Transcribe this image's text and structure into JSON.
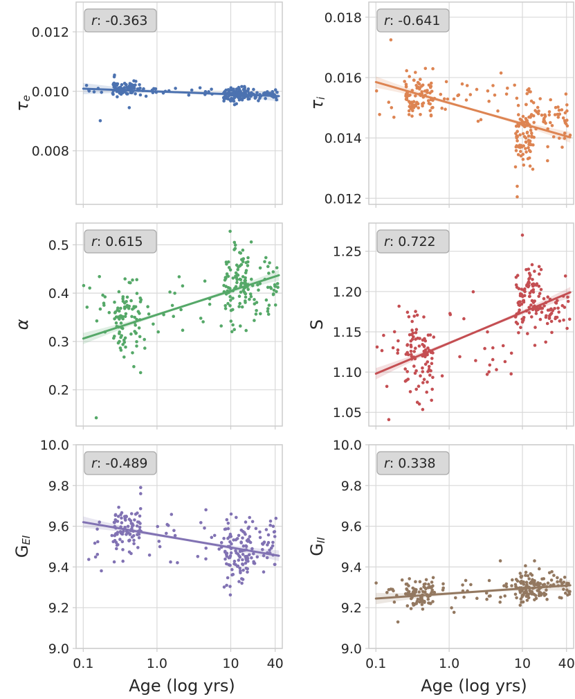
{
  "chart_data": [
    {
      "type": "scatter",
      "id": "tau_e",
      "ylabel": "τ",
      "ylabel_sub": "e",
      "annotation": {
        "label": "r",
        "value": "-0.363"
      },
      "color": "#4C72B0",
      "x_scale": "log",
      "xlim": [
        0.08,
        50
      ],
      "ylim": [
        0.0062,
        0.013
      ],
      "y_ticks": [
        "0.008",
        "0.010",
        "0.012"
      ],
      "fit": {
        "x": [
          0.1,
          45
        ],
        "y": [
          0.01009,
          0.00984
        ]
      },
      "points": {
        "n": 260,
        "seed": 11,
        "clusters": [
          {
            "x": [
              0.25,
              0.6
            ],
            "y": 0.01012,
            "sd": 0.00012,
            "frac": 0.32
          },
          {
            "x": [
              8,
              18
            ],
            "y": 0.00988,
            "sd": 0.00013,
            "frac": 0.42
          },
          {
            "x": [
              18,
              45
            ],
            "y": 0.0099,
            "sd": 0.0001,
            "frac": 0.14
          },
          {
            "x": [
              0.1,
              8
            ],
            "y": 0.01,
            "sd": 0.0001,
            "frac": 0.12
          }
        ],
        "outliers": [
          [
            0.17,
            0.00901
          ],
          [
            0.42,
            0.00945
          ],
          [
            0.12,
            0.01001
          ]
        ]
      }
    },
    {
      "type": "scatter",
      "id": "tau_i",
      "ylabel": "τ",
      "ylabel_sub": "i",
      "annotation": {
        "label": "r",
        "value": "-0.641"
      },
      "color": "#DD8452",
      "x_scale": "log",
      "xlim": [
        0.08,
        50
      ],
      "ylim": [
        0.0118,
        0.0185
      ],
      "y_ticks": [
        "0.012",
        "0.014",
        "0.016",
        "0.018"
      ],
      "fit": {
        "x": [
          0.1,
          45
        ],
        "y": [
          0.01585,
          0.01402
        ]
      },
      "points": {
        "n": 260,
        "seed": 23,
        "clusters": [
          {
            "x": [
              0.25,
              0.6
            ],
            "y": 0.0155,
            "sd": 0.00035,
            "frac": 0.3
          },
          {
            "x": [
              8,
              14
            ],
            "y": 0.0142,
            "sd": 0.00055,
            "frac": 0.36
          },
          {
            "x": [
              14,
              45
            ],
            "y": 0.0147,
            "sd": 0.0004,
            "frac": 0.2
          },
          {
            "x": [
              0.1,
              8
            ],
            "y": 0.0152,
            "sd": 0.0004,
            "frac": 0.14
          }
        ],
        "outliers": [
          [
            0.16,
            0.01725
          ],
          [
            8.5,
            0.01205
          ],
          [
            8.5,
            0.0124
          ]
        ]
      }
    },
    {
      "type": "scatter",
      "id": "alpha",
      "ylabel": "α",
      "annotation": {
        "label": "r",
        "value": "0.615"
      },
      "color": "#55A868",
      "x_scale": "log",
      "xlim": [
        0.08,
        50
      ],
      "ylim": [
        0.125,
        0.545
      ],
      "y_ticks": [
        "0.2",
        "0.3",
        "0.4",
        "0.5"
      ],
      "fit": {
        "x": [
          0.1,
          45
        ],
        "y": [
          0.306,
          0.437
        ]
      },
      "points": {
        "n": 260,
        "seed": 37,
        "clusters": [
          {
            "x": [
              0.25,
              0.6
            ],
            "y": 0.33,
            "sd": 0.04,
            "frac": 0.3
          },
          {
            "x": [
              8,
              18
            ],
            "y": 0.42,
            "sd": 0.04,
            "frac": 0.38
          },
          {
            "x": [
              18,
              45
            ],
            "y": 0.4,
            "sd": 0.035,
            "frac": 0.16
          },
          {
            "x": [
              0.1,
              8
            ],
            "y": 0.37,
            "sd": 0.04,
            "frac": 0.16
          }
        ],
        "outliers": [
          [
            0.15,
            0.142
          ],
          [
            9.8,
            0.528
          ]
        ]
      }
    },
    {
      "type": "scatter",
      "id": "S",
      "ylabel": "S",
      "annotation": {
        "label": "r",
        "value": "0.722"
      },
      "color": "#C44E52",
      "x_scale": "log",
      "xlim": [
        0.08,
        50
      ],
      "ylim": [
        1.033,
        1.285
      ],
      "y_ticks": [
        "1.05",
        "1.10",
        "1.15",
        "1.20",
        "1.25"
      ],
      "fit": {
        "x": [
          0.1,
          45
        ],
        "y": [
          1.098,
          1.199
        ]
      },
      "points": {
        "n": 260,
        "seed": 53,
        "clusters": [
          {
            "x": [
              0.25,
              0.6
            ],
            "y": 1.12,
            "sd": 0.025,
            "frac": 0.3
          },
          {
            "x": [
              8,
              18
            ],
            "y": 1.19,
            "sd": 0.02,
            "frac": 0.38
          },
          {
            "x": [
              18,
              45
            ],
            "y": 1.17,
            "sd": 0.018,
            "frac": 0.16
          },
          {
            "x": [
              0.1,
              8
            ],
            "y": 1.14,
            "sd": 0.025,
            "frac": 0.16
          }
        ],
        "outliers": [
          [
            0.15,
            1.041
          ],
          [
            10,
            1.27
          ]
        ]
      }
    },
    {
      "type": "scatter",
      "id": "G_EI",
      "ylabel": "G",
      "ylabel_sub": "EI",
      "annotation": {
        "label": "r",
        "value": "-0.489"
      },
      "color": "#8172B3",
      "x_scale": "log",
      "xlim": [
        0.08,
        50
      ],
      "ylim": [
        9.0,
        10.0
      ],
      "y_ticks": [
        "9.0",
        "9.2",
        "9.4",
        "9.6",
        "9.8",
        "10.0"
      ],
      "fit": {
        "x": [
          0.1,
          45
        ],
        "y": [
          9.62,
          9.455
        ]
      },
      "points": {
        "n": 260,
        "seed": 71,
        "clusters": [
          {
            "x": [
              0.25,
              0.6
            ],
            "y": 9.58,
            "sd": 0.06,
            "frac": 0.3
          },
          {
            "x": [
              8,
              18
            ],
            "y": 9.48,
            "sd": 0.08,
            "frac": 0.38
          },
          {
            "x": [
              18,
              45
            ],
            "y": 9.52,
            "sd": 0.07,
            "frac": 0.16
          },
          {
            "x": [
              0.1,
              8
            ],
            "y": 9.55,
            "sd": 0.07,
            "frac": 0.16
          }
        ],
        "outliers": [
          [
            0.6,
            9.79
          ],
          [
            0.6,
            9.76
          ],
          [
            8.8,
            9.31
          ]
        ]
      }
    },
    {
      "type": "scatter",
      "id": "G_II",
      "ylabel": "G",
      "ylabel_sub": "II",
      "annotation": {
        "label": "r",
        "value": "0.338"
      },
      "color": "#937860",
      "x_scale": "log",
      "xlim": [
        0.08,
        50
      ],
      "ylim": [
        9.0,
        10.0
      ],
      "y_ticks": [
        "9.0",
        "9.2",
        "9.4",
        "9.6",
        "9.8",
        "10.0"
      ],
      "fit": {
        "x": [
          0.1,
          45
        ],
        "y": [
          9.245,
          9.31
        ]
      },
      "points": {
        "n": 260,
        "seed": 89,
        "clusters": [
          {
            "x": [
              0.25,
              0.6
            ],
            "y": 9.26,
            "sd": 0.04,
            "frac": 0.3
          },
          {
            "x": [
              8,
              18
            ],
            "y": 9.3,
            "sd": 0.035,
            "frac": 0.38
          },
          {
            "x": [
              18,
              45
            ],
            "y": 9.3,
            "sd": 0.035,
            "frac": 0.16
          },
          {
            "x": [
              0.1,
              8
            ],
            "y": 9.28,
            "sd": 0.04,
            "frac": 0.16
          }
        ],
        "outliers": [
          [
            0.2,
            9.13
          ],
          [
            5,
            9.43
          ]
        ]
      }
    }
  ],
  "shared": {
    "x_ticks": [
      {
        "value": 0.1,
        "label": "0.1"
      },
      {
        "value": 1,
        "label": "1.0"
      },
      {
        "value": 10,
        "label": "10"
      },
      {
        "value": 40,
        "label": "40"
      }
    ],
    "xlabel": "Age (log yrs)",
    "r_separator": ": "
  }
}
